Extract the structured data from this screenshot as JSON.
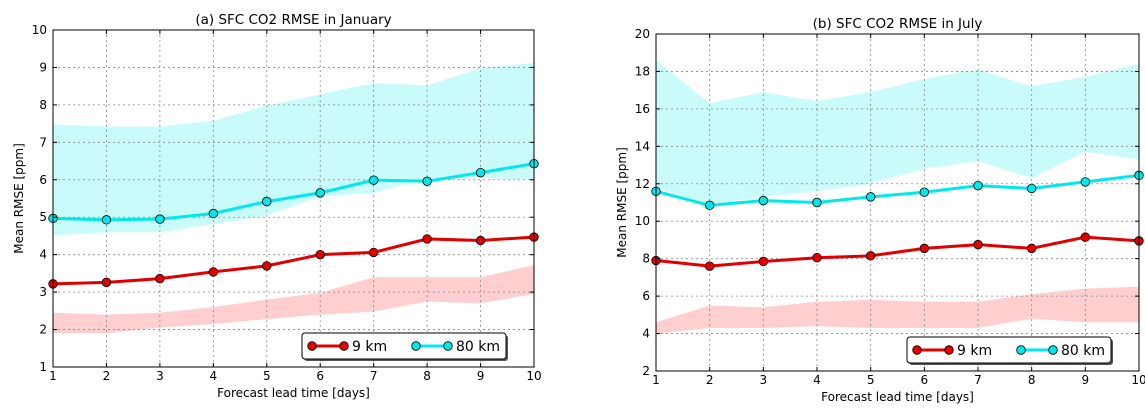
{
  "colors": {
    "line_9km": "#e00000",
    "line_80km": "#00e8e8",
    "band_9km": "#ffb0b0",
    "band_80km": "#a8f8f8",
    "grid": "#888888"
  },
  "chart_data": [
    {
      "type": "line",
      "title": "(a) SFC CO2 RMSE in January",
      "xlabel": "Forecast lead time [days]",
      "ylabel": "Mean RMSE [ppm]",
      "xlim": [
        1,
        10
      ],
      "ylim": [
        1,
        10
      ],
      "xticks": [
        "1",
        "2",
        "3",
        "4",
        "5",
        "6",
        "7",
        "8",
        "9",
        "10"
      ],
      "yticks": [
        "1",
        "2",
        "3",
        "4",
        "5",
        "6",
        "7",
        "8",
        "9",
        "10"
      ],
      "grid": true,
      "legend": "bottom-right",
      "x": [
        1,
        2,
        3,
        4,
        5,
        6,
        7,
        8,
        9,
        10
      ],
      "series": [
        {
          "name": "9 km",
          "values": [
            3.22,
            3.26,
            3.36,
            3.54,
            3.7,
            4.0,
            4.06,
            4.42,
            4.38,
            4.47
          ],
          "band_low": [
            1.9,
            1.9,
            2.05,
            2.15,
            2.28,
            2.4,
            2.48,
            2.75,
            2.7,
            2.95
          ],
          "band_high": [
            2.45,
            2.4,
            2.45,
            2.6,
            2.8,
            2.98,
            3.4,
            3.4,
            3.4,
            3.72
          ]
        },
        {
          "name": "80 km",
          "values": [
            4.97,
            4.93,
            4.95,
            5.1,
            5.42,
            5.65,
            5.99,
            5.96,
            6.19,
            6.43
          ],
          "band_low": [
            4.52,
            4.6,
            4.6,
            4.82,
            5.05,
            5.55,
            5.65,
            6.05,
            6.05,
            6.0
          ],
          "band_high": [
            7.48,
            7.42,
            7.42,
            7.58,
            7.98,
            8.28,
            8.58,
            8.52,
            8.98,
            9.12
          ]
        }
      ]
    },
    {
      "type": "line",
      "title": "(b) SFC CO2 RMSE in July",
      "xlabel": "Forecast lead time [days]",
      "ylabel": "Mean RMSE [ppm]",
      "xlim": [
        1,
        10
      ],
      "ylim": [
        2,
        20
      ],
      "xticks": [
        "1",
        "2",
        "3",
        "4",
        "5",
        "6",
        "7",
        "8",
        "9",
        "10"
      ],
      "yticks": [
        "2",
        "4",
        "6",
        "8",
        "10",
        "12",
        "14",
        "16",
        "18",
        "20"
      ],
      "grid": true,
      "legend": "bottom-right",
      "x": [
        1,
        2,
        3,
        4,
        5,
        6,
        7,
        8,
        9,
        10
      ],
      "series": [
        {
          "name": "9 km",
          "values": [
            7.9,
            7.6,
            7.85,
            8.05,
            8.15,
            8.55,
            8.75,
            8.55,
            9.15,
            8.95
          ],
          "band_low": [
            4.0,
            4.3,
            4.3,
            4.4,
            4.3,
            4.3,
            4.3,
            4.8,
            4.6,
            4.6
          ],
          "band_high": [
            4.6,
            5.5,
            5.4,
            5.7,
            5.8,
            5.7,
            5.7,
            6.1,
            6.4,
            6.5
          ]
        },
        {
          "name": "80 km",
          "values": [
            11.6,
            10.85,
            11.1,
            11.0,
            11.3,
            11.55,
            11.9,
            11.75,
            12.1,
            12.45
          ],
          "band_low": [
            11.8,
            10.9,
            11.3,
            11.6,
            12.0,
            12.8,
            13.2,
            12.3,
            13.7,
            13.3
          ],
          "band_high": [
            18.6,
            16.3,
            16.9,
            16.4,
            16.9,
            17.6,
            18.1,
            17.2,
            17.7,
            18.4
          ]
        }
      ]
    }
  ]
}
